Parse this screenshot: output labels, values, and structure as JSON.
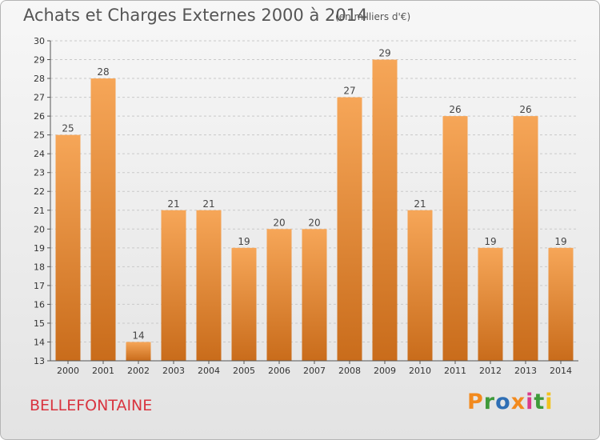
{
  "header": {
    "title": "Achats et Charges Externes 2000 à 2014",
    "unit": "(en milliers d'€)"
  },
  "footer": {
    "city": "BELLEFONTAINE",
    "logo": "Proxiti",
    "logo_colors": [
      "#f28a1e",
      "#3f9a3a",
      "#2f6fb5",
      "#f28a1e",
      "#d93a8a",
      "#3f9a3a",
      "#f2c21e"
    ]
  },
  "colors": {
    "bar_top": "#f6a658",
    "bar_bottom": "#c96c1b",
    "gridline": "#c9c9c9",
    "axis": "#555555"
  },
  "chart_data": {
    "type": "bar",
    "title": "Achats et Charges Externes 2000 à 2014",
    "xlabel": "",
    "ylabel": "",
    "categories": [
      "2000",
      "2001",
      "2002",
      "2003",
      "2004",
      "2005",
      "2006",
      "2007",
      "2008",
      "2009",
      "2010",
      "2011",
      "2012",
      "2013",
      "2014"
    ],
    "values": [
      25,
      28,
      14,
      21,
      21,
      19,
      20,
      20,
      27,
      29,
      21,
      26,
      19,
      26,
      19
    ],
    "ylim": [
      13,
      30
    ],
    "yticks": [
      13,
      14,
      15,
      16,
      17,
      18,
      19,
      20,
      21,
      22,
      23,
      24,
      25,
      26,
      27,
      28,
      29,
      30
    ],
    "grid": true,
    "legend": "none"
  }
}
